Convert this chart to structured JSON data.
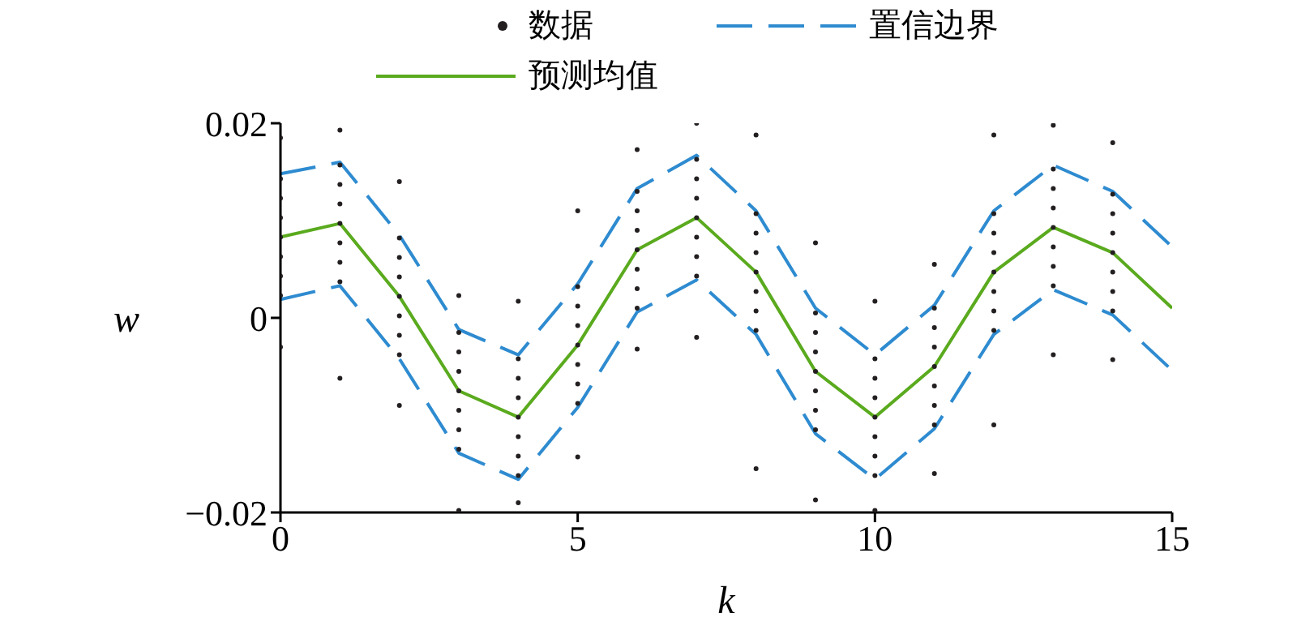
{
  "chart_data": {
    "type": "line",
    "xlabel": "k",
    "ylabel": "w",
    "xlim": [
      0,
      15
    ],
    "xticks": [
      0,
      5,
      10,
      15
    ],
    "ylim": [
      -0.02,
      0.02
    ],
    "yticks": [
      {
        "value": -0.02,
        "label": "−0.02"
      },
      0,
      0.02
    ],
    "grid": false,
    "legend": "top",
    "series": [
      {
        "name": "数据",
        "type": "scatter",
        "marker": "circle",
        "color": "#231f20",
        "x": [
          0,
          0,
          0,
          0,
          0,
          0,
          0,
          0,
          0,
          1,
          1,
          1,
          1,
          1,
          1,
          1,
          1,
          1,
          2,
          2,
          2,
          2,
          2,
          2,
          2,
          2,
          2,
          3,
          3,
          3,
          3,
          3,
          3,
          3,
          3,
          3,
          4,
          4,
          4,
          4,
          4,
          4,
          4,
          4,
          4,
          5,
          5,
          5,
          5,
          5,
          5,
          5,
          5,
          5,
          6,
          6,
          6,
          6,
          6,
          6,
          6,
          6,
          6,
          7,
          7,
          7,
          7,
          7,
          7,
          7,
          7,
          7,
          8,
          8,
          8,
          8,
          8,
          8,
          8,
          8,
          8,
          9,
          9,
          9,
          9,
          9,
          9,
          9,
          9,
          9,
          10,
          10,
          10,
          10,
          10,
          10,
          10,
          10,
          10,
          11,
          11,
          11,
          11,
          11,
          11,
          11,
          11,
          11,
          12,
          12,
          12,
          12,
          12,
          12,
          12,
          12,
          12,
          13,
          13,
          13,
          13,
          13,
          13,
          13,
          13,
          13,
          14,
          14,
          14,
          14,
          14,
          14,
          14,
          14,
          14
        ],
        "values": [
          0.0185,
          0.0143,
          0.0123,
          0.0103,
          0.0083,
          0.0063,
          0.0043,
          0.0023,
          -0.003,
          0.0193,
          0.0157,
          0.0137,
          0.0117,
          0.0097,
          0.0077,
          0.0057,
          0.0037,
          -0.0062,
          0.014,
          0.0082,
          0.0062,
          0.0042,
          0.0022,
          0.0002,
          -0.0018,
          -0.0038,
          -0.009,
          0.0023,
          -0.0015,
          -0.0035,
          -0.0055,
          -0.0075,
          -0.0095,
          -0.0115,
          -0.0135,
          -0.0198,
          0.0017,
          -0.0042,
          -0.0062,
          -0.0082,
          -0.0102,
          -0.0122,
          -0.0142,
          -0.0162,
          -0.019,
          0.011,
          0.0032,
          0.0012,
          -0.0008,
          -0.0028,
          -0.0048,
          -0.0068,
          -0.0088,
          -0.0143,
          0.0173,
          0.013,
          0.011,
          0.009,
          0.007,
          0.005,
          0.003,
          0.001,
          -0.0032,
          0.02,
          0.0163,
          0.0143,
          0.0123,
          0.0103,
          0.0083,
          0.0063,
          0.0043,
          -0.002,
          0.0188,
          0.0107,
          0.0087,
          0.0067,
          0.0047,
          0.0027,
          0.0007,
          -0.0013,
          -0.0155,
          0.0077,
          0.0005,
          -0.0015,
          -0.0035,
          -0.0055,
          -0.0075,
          -0.0095,
          -0.0115,
          -0.0187,
          0.0017,
          -0.0042,
          -0.0062,
          -0.0082,
          -0.0102,
          -0.0122,
          -0.0142,
          -0.0162,
          -0.0198,
          0.0055,
          0.001,
          -0.001,
          -0.003,
          -0.005,
          -0.007,
          -0.009,
          -0.011,
          -0.016,
          0.0188,
          0.0107,
          0.0087,
          0.0067,
          0.0047,
          0.0027,
          0.0007,
          -0.0013,
          -0.011,
          0.0198,
          0.0153,
          0.0133,
          0.0113,
          0.0093,
          0.0073,
          0.0053,
          0.0033,
          -0.0038,
          0.018,
          0.0127,
          0.0107,
          0.0087,
          0.0067,
          0.0047,
          0.0027,
          0.0007,
          -0.0043
        ]
      },
      {
        "name": "置信边界",
        "line_style": "dashed",
        "color": "#2e8bd0",
        "x": [
          0,
          1,
          2,
          3,
          4,
          5,
          6,
          7,
          8,
          9,
          10,
          11,
          12,
          13,
          14,
          15
        ],
        "values": [
          0.0148,
          0.016,
          0.0085,
          -0.0012,
          -0.0038,
          0.0035,
          0.0133,
          0.0167,
          0.011,
          0.001,
          -0.0038,
          0.0013,
          0.011,
          0.0157,
          0.013,
          0.0073
        ]
      },
      {
        "name": "预测均值",
        "line_style": "solid",
        "color": "#5aaa1e",
        "x": [
          0,
          1,
          2,
          3,
          4,
          5,
          6,
          7,
          8,
          9,
          10,
          11,
          12,
          13,
          14,
          15
        ],
        "values": [
          0.0083,
          0.0097,
          0.0022,
          -0.0075,
          -0.0102,
          -0.0028,
          0.007,
          0.0103,
          0.0047,
          -0.0055,
          -0.0102,
          -0.005,
          0.0047,
          0.0093,
          0.0067,
          0.001
        ]
      },
      {
        "line_style": "dashed",
        "color": "#2e8bd0",
        "x": [
          0,
          1,
          2,
          3,
          4,
          5,
          6,
          7,
          8,
          9,
          10,
          11,
          12,
          13,
          14,
          15
        ],
        "values": [
          0.0019,
          0.0033,
          -0.0042,
          -0.0139,
          -0.0166,
          -0.0092,
          0.0006,
          0.0039,
          -0.0017,
          -0.0119,
          -0.0166,
          -0.0114,
          -0.0017,
          0.0029,
          0.0003,
          -0.0054
        ]
      }
    ]
  }
}
